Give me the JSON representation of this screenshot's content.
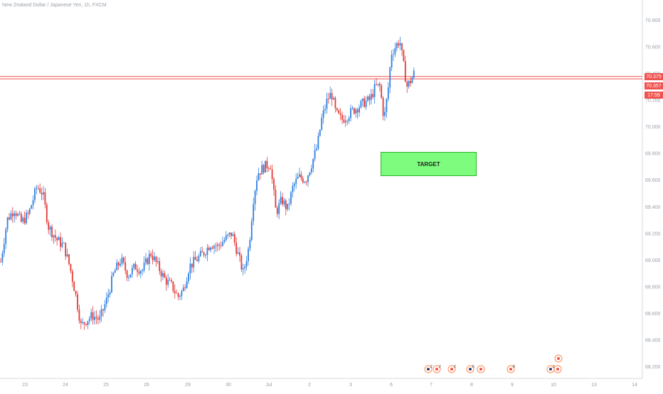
{
  "symbol_title": "New Zealand Dollar / Japanese Yen, 1h, FXCM",
  "target_label": "TARGET",
  "price_tags": {
    "line_price_1": "70.375",
    "line_price_2": "70.357",
    "countdown": "17:59"
  },
  "colors": {
    "up": "#2f7fe0",
    "down": "#e53935",
    "level_line": "#ef5350",
    "target_fill": "#7dfc7d",
    "axis_text": "#9aa0a8"
  },
  "chart_data": {
    "type": "candlestick",
    "title": "New Zealand Dollar / Japanese Yen, 1h, FXCM",
    "y_ticks": [
      "70.800",
      "70.600",
      "70.400",
      "70.200",
      "70.000",
      "69.800",
      "69.600",
      "69.400",
      "69.200",
      "69.000",
      "68.800",
      "68.600",
      "68.400",
      "68.200"
    ],
    "ylim": [
      68.2,
      70.85
    ],
    "x_ticks": [
      "23",
      "24",
      "25",
      "26",
      "29",
      "30",
      "Jul",
      "2",
      "3",
      "6",
      "7",
      "8",
      "9",
      "10",
      "13",
      "14"
    ],
    "horizontal_levels": [
      70.375,
      70.357
    ],
    "target_zone": {
      "label": "TARGET",
      "price_low": 69.66,
      "price_high": 69.84
    },
    "path_points": [
      [
        0,
        68.95
      ],
      [
        10,
        69.3
      ],
      [
        20,
        69.38
      ],
      [
        30,
        69.28
      ],
      [
        40,
        69.34
      ],
      [
        52,
        69.55
      ],
      [
        60,
        69.5
      ],
      [
        68,
        69.25
      ],
      [
        80,
        69.15
      ],
      [
        90,
        69.1
      ],
      [
        98,
        68.95
      ],
      [
        106,
        68.75
      ],
      [
        114,
        68.5
      ],
      [
        122,
        68.55
      ],
      [
        130,
        68.58
      ],
      [
        140,
        68.55
      ],
      [
        150,
        68.7
      ],
      [
        160,
        68.9
      ],
      [
        170,
        69.0
      ],
      [
        180,
        68.88
      ],
      [
        190,
        68.95
      ],
      [
        200,
        68.92
      ],
      [
        212,
        69.05
      ],
      [
        222,
        68.95
      ],
      [
        232,
        68.85
      ],
      [
        242,
        68.8
      ],
      [
        250,
        68.72
      ],
      [
        258,
        68.78
      ],
      [
        266,
        68.95
      ],
      [
        276,
        69.0
      ],
      [
        286,
        69.05
      ],
      [
        296,
        69.12
      ],
      [
        306,
        69.1
      ],
      [
        316,
        69.15
      ],
      [
        326,
        69.2
      ],
      [
        334,
        69.05
      ],
      [
        342,
        68.9
      ],
      [
        350,
        69.1
      ],
      [
        356,
        69.45
      ],
      [
        362,
        69.65
      ],
      [
        372,
        69.7
      ],
      [
        380,
        69.72
      ],
      [
        388,
        69.35
      ],
      [
        396,
        69.45
      ],
      [
        404,
        69.38
      ],
      [
        412,
        69.55
      ],
      [
        420,
        69.62
      ],
      [
        430,
        69.6
      ],
      [
        438,
        69.72
      ],
      [
        446,
        69.85
      ],
      [
        452,
        70.05
      ],
      [
        460,
        70.2
      ],
      [
        466,
        70.25
      ],
      [
        472,
        70.1
      ],
      [
        480,
        70.05
      ],
      [
        488,
        70.08
      ],
      [
        496,
        70.12
      ],
      [
        504,
        70.15
      ],
      [
        512,
        70.18
      ],
      [
        520,
        70.2
      ],
      [
        528,
        70.3
      ],
      [
        534,
        70.3
      ],
      [
        540,
        70.05
      ],
      [
        546,
        70.3
      ],
      [
        550,
        70.55
      ],
      [
        556,
        70.6
      ],
      [
        562,
        70.65
      ],
      [
        566,
        70.5
      ],
      [
        572,
        70.3
      ],
      [
        578,
        70.35
      ],
      [
        582,
        70.4
      ]
    ],
    "event_markers": [
      {
        "day": "7",
        "count": "2"
      },
      {
        "day": "7",
        "count": "2"
      },
      {
        "day": "7",
        "count": "2"
      },
      {
        "day": "8",
        "count": "5"
      },
      {
        "day": "8",
        "count": ""
      },
      {
        "day": "9",
        "count": "8"
      },
      {
        "day": "10",
        "count": "2"
      },
      {
        "day": "10",
        "count": ""
      },
      {
        "day": "10",
        "count": ""
      }
    ]
  }
}
